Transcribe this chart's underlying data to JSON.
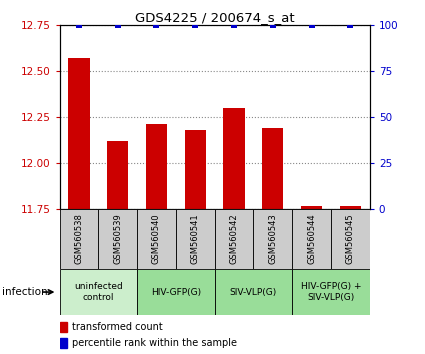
{
  "title": "GDS4225 / 200674_s_at",
  "samples": [
    "GSM560538",
    "GSM560539",
    "GSM560540",
    "GSM560541",
    "GSM560542",
    "GSM560543",
    "GSM560544",
    "GSM560545"
  ],
  "transformed_counts": [
    12.57,
    12.12,
    12.21,
    12.18,
    12.3,
    12.19,
    11.765,
    11.765
  ],
  "percentile_ranks": [
    100,
    100,
    100,
    100,
    100,
    100,
    100,
    100
  ],
  "ylim_left": [
    11.75,
    12.75
  ],
  "ylim_right": [
    0,
    100
  ],
  "yticks_left": [
    11.75,
    12.0,
    12.25,
    12.5,
    12.75
  ],
  "yticks_right": [
    0,
    25,
    50,
    75,
    100
  ],
  "bar_color": "#cc0000",
  "dot_color": "#0000cc",
  "bar_width": 0.55,
  "groups": [
    {
      "label": "uninfected\ncontrol",
      "start": 0,
      "end": 2,
      "color": "#cceecc"
    },
    {
      "label": "HIV-GFP(G)",
      "start": 2,
      "end": 4,
      "color": "#99dd99"
    },
    {
      "label": "SIV-VLP(G)",
      "start": 4,
      "end": 6,
      "color": "#99dd99"
    },
    {
      "label": "HIV-GFP(G) +\nSIV-VLP(G)",
      "start": 6,
      "end": 8,
      "color": "#99dd99"
    }
  ],
  "grid_color": "#888888",
  "sample_box_color": "#cccccc",
  "bar_axis_color": "#cc0000",
  "pct_axis_color": "#0000cc",
  "infection_label": "infection",
  "legend_red_label": "transformed count",
  "legend_blue_label": "percentile rank within the sample",
  "bg_color": "#ffffff"
}
